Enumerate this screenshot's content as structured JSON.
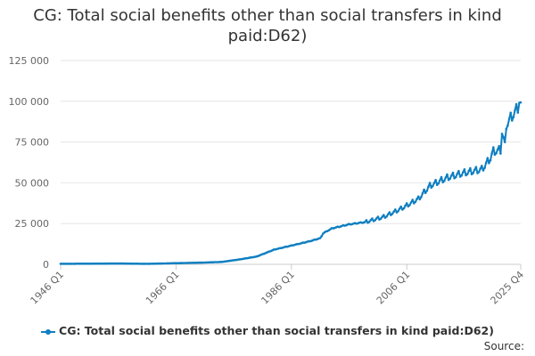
{
  "chart_data": {
    "type": "line",
    "title": "CG: Total social benefits other than social transfers in kind paid:D62)",
    "x_tick_labels": [
      "1946 Q1",
      "1966 Q1",
      "1986 Q1",
      "2006 Q1",
      "2025 Q4"
    ],
    "y_tick_labels": [
      "0",
      "25 000",
      "50 000",
      "75 000",
      "100 000",
      "125 000"
    ],
    "ylim": [
      0,
      125000
    ],
    "grid": true,
    "legend_position": "bottom",
    "series": [
      {
        "name": "CG: Total social benefits other than social transfers in kind paid:D62)",
        "color": "#0f7fc1",
        "anchors": [
          [
            1946.0,
            300
          ],
          [
            1956.0,
            500
          ],
          [
            1961.0,
            300
          ],
          [
            1966.0,
            700
          ],
          [
            1971.0,
            1100
          ],
          [
            1974.0,
            1500
          ],
          [
            1977.0,
            3000
          ],
          [
            1980.0,
            4800
          ],
          [
            1983.0,
            9000
          ],
          [
            1986.0,
            11500
          ],
          [
            1989.0,
            14000
          ],
          [
            1991.0,
            16000
          ],
          [
            1991.5,
            19000
          ],
          [
            1993.0,
            22000
          ],
          [
            1996.0,
            24500
          ],
          [
            1999.0,
            26000
          ],
          [
            2002.0,
            29000
          ],
          [
            2005.0,
            34000
          ],
          [
            2008.0,
            40000
          ],
          [
            2010.0,
            48000
          ],
          [
            2013.0,
            53000
          ],
          [
            2016.0,
            56000
          ],
          [
            2019.0,
            58000
          ],
          [
            2020.5,
            65000
          ],
          [
            2021.0,
            69000
          ],
          [
            2022.5,
            70000
          ],
          [
            2023.0,
            84000
          ],
          [
            2024.5,
            92000
          ],
          [
            2025.75,
            98000
          ]
        ],
        "spikes": [
          [
            2022.6,
            80000
          ],
          [
            2023.1,
            75000
          ],
          [
            2025.6,
            99000
          ]
        ]
      }
    ]
  },
  "legend": {
    "label": "CG: Total social benefits other than social transfers in kind paid:D62)"
  },
  "source_label": "Source:"
}
